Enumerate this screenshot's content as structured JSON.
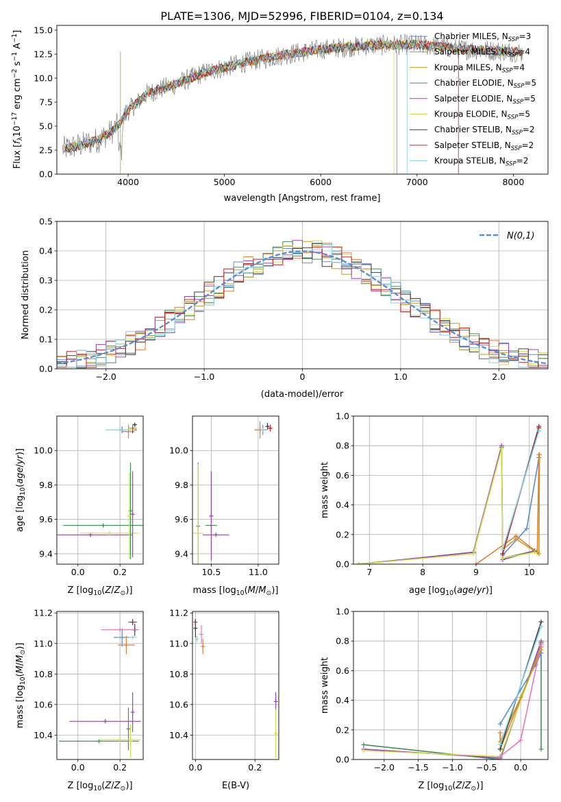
{
  "title": "PLATE=1306, MJD=52996, FIBERID=0104, z=0.134",
  "models": [
    {
      "name": "Chabrier MILES",
      "nssp": "3",
      "color": "#5b8bd8"
    },
    {
      "name": "Salpeter MILES",
      "nssp": "4",
      "color": "#e07b39"
    },
    {
      "name": "Kroupa MILES",
      "nssp": "4",
      "color": "#c59a1a"
    },
    {
      "name": "Chabrier ELODIE",
      "nssp": "5",
      "color": "#3f8f5a"
    },
    {
      "name": "Salpeter ELODIE",
      "nssp": "5",
      "color": "#9a3fb2"
    },
    {
      "name": "Kroupa ELODIE",
      "nssp": "5",
      "color": "#d4dd4a"
    },
    {
      "name": "Chabrier STELIB",
      "nssp": "2",
      "color": "#3d3d3d"
    },
    {
      "name": "Salpeter STELIB",
      "nssp": "2",
      "color": "#c42020"
    },
    {
      "name": "Kroupa STELIB",
      "nssp": "2",
      "color": "#7fd4e4"
    }
  ],
  "chart_data": [
    {
      "id": "spectrum",
      "type": "line",
      "xlabel": "wavelength [Angstrom, rest frame]",
      "ylabel": "Flux [f_λ 10^-17 erg cm^-2 s^-1 A^-1]",
      "xlim": [
        3260,
        8360
      ],
      "ylim": [
        0,
        15.5
      ],
      "xticks": [
        4000,
        5000,
        6000,
        7000,
        8000
      ],
      "yticks": [
        0.0,
        2.5,
        5.0,
        7.5,
        10.0,
        12.5,
        15.0
      ],
      "legend": "top-right",
      "data_color": "#808080",
      "continuum": [
        {
          "x": 3320,
          "y": 2.6
        },
        {
          "x": 3500,
          "y": 3.0
        },
        {
          "x": 3700,
          "y": 3.6
        },
        {
          "x": 3850,
          "y": 4.6
        },
        {
          "x": 3920,
          "y": 5.4
        },
        {
          "x": 4000,
          "y": 6.6
        },
        {
          "x": 4200,
          "y": 8.4
        },
        {
          "x": 4500,
          "y": 9.4
        },
        {
          "x": 4800,
          "y": 10.6
        },
        {
          "x": 5200,
          "y": 11.6
        },
        {
          "x": 5600,
          "y": 12.4
        },
        {
          "x": 6000,
          "y": 13.0
        },
        {
          "x": 6500,
          "y": 13.4
        },
        {
          "x": 7000,
          "y": 13.5
        },
        {
          "x": 7500,
          "y": 13.0
        },
        {
          "x": 8100,
          "y": 12.7
        }
      ]
    },
    {
      "id": "residuals",
      "type": "step",
      "xlabel": "(data-model)/error",
      "ylabel": "Normed distribution",
      "xlim": [
        -2.5,
        2.5
      ],
      "ylim": [
        0,
        0.5
      ],
      "xticks": [
        -2,
        -1,
        0,
        1,
        2
      ],
      "yticks": [
        0.0,
        0.1,
        0.2,
        0.3,
        0.4,
        0.5
      ],
      "grid": true,
      "legend": "top-right",
      "gaussian_label": "N(0,1)",
      "gaussian_color": "#5b8bd8",
      "bin_width": 0.1
    },
    {
      "id": "age-vs-Z",
      "type": "errorbar",
      "xlabel": "Z [log10(Z/Z_sun)]",
      "ylabel": "age [log10(age/yr)]",
      "xlim": [
        -0.1,
        0.31
      ],
      "ylim": [
        9.34,
        10.2
      ],
      "xticks": [
        0.0,
        0.2
      ],
      "yticks": [
        9.4,
        9.6,
        9.8,
        10.0
      ],
      "grid": true,
      "points": [
        {
          "m": 0,
          "x": 0.21,
          "y": 10.12,
          "xe": 0.02,
          "ye": 0.02
        },
        {
          "m": 1,
          "x": 0.24,
          "y": 10.11,
          "xe": 0.03,
          "ye": 0.04
        },
        {
          "m": 2,
          "x": 0.26,
          "y": 10.13,
          "xe": 0.02,
          "ye": 0.02
        },
        {
          "m": 3,
          "x": 0.12,
          "y": 9.565,
          "xe": 0.19,
          "ye": 0.01
        },
        {
          "m": 4,
          "x": 0.06,
          "y": 9.51,
          "xe": 0.2,
          "ye": 0.01
        },
        {
          "m": 5,
          "x": 0.15,
          "y": 9.52,
          "xe": 0.14,
          "ye": 0.01
        },
        {
          "m": 6,
          "x": 0.27,
          "y": 10.15,
          "xe": 0.01,
          "ye": 0.01
        },
        {
          "m": 7,
          "x": 0.26,
          "y": 10.12,
          "xe": 0.02,
          "ye": 0.02
        },
        {
          "m": 8,
          "x": 0.2,
          "y": 10.12,
          "xe": 0.07,
          "ye": 0.01
        },
        {
          "m": 3,
          "x": 0.25,
          "y": 9.65,
          "xe": 0.0,
          "ye": 0.28
        },
        {
          "m": 4,
          "x": 0.26,
          "y": 9.63,
          "xe": 0.0,
          "ye": 0.25
        },
        {
          "m": 5,
          "x": 0.245,
          "y": 9.62,
          "xe": 0.0,
          "ye": 0.25
        }
      ]
    },
    {
      "id": "age-vs-mass",
      "type": "errorbar",
      "xlabel": "mass [log10(M/M_sun)]",
      "ylabel": "",
      "xlim": [
        10.3,
        11.22
      ],
      "ylim": [
        9.34,
        10.2
      ],
      "xticks": [
        10.5,
        11.0
      ],
      "yticks": [
        9.4,
        9.6,
        9.8,
        10.0
      ],
      "grid": true,
      "points": [
        {
          "m": 0,
          "x": 11.05,
          "y": 10.12,
          "xe": 0.04,
          "ye": 0.03
        },
        {
          "m": 1,
          "x": 11.02,
          "y": 10.12,
          "xe": 0.06,
          "ye": 0.05
        },
        {
          "m": 6,
          "x": 11.1,
          "y": 10.14,
          "xe": 0.02,
          "ye": 0.02
        },
        {
          "m": 7,
          "x": 11.13,
          "y": 10.13,
          "xe": 0.02,
          "ye": 0.02
        },
        {
          "m": 8,
          "x": 11.05,
          "y": 10.12,
          "xe": 0.02,
          "ye": 0.01
        },
        {
          "m": 3,
          "x": 10.36,
          "y": 9.56,
          "xe": 0.0,
          "ye": 0.37
        },
        {
          "m": 3,
          "x": 10.5,
          "y": 9.565,
          "xe": 0.06,
          "ye": 0.0
        },
        {
          "m": 4,
          "x": 10.5,
          "y": 9.62,
          "xe": 0.0,
          "ye": 0.26
        },
        {
          "m": 4,
          "x": 10.55,
          "y": 9.51,
          "xe": 0.14,
          "ye": 0.0
        },
        {
          "m": 5,
          "x": 10.36,
          "y": 9.52,
          "xe": 0.06,
          "ye": 0.4
        }
      ]
    },
    {
      "id": "massweight-vs-age",
      "type": "line",
      "xlabel": "age [log10(age/yr)]",
      "ylabel": "mass weight",
      "xlim": [
        6.7,
        10.35
      ],
      "ylim": [
        0,
        1
      ],
      "xticks": [
        7,
        8,
        9,
        10
      ],
      "yticks": [
        0.0,
        0.2,
        0.4,
        0.6,
        0.8,
        1.0
      ],
      "grid": true,
      "series": [
        {
          "m": 0,
          "x": [
            9.5,
            9.95,
            10.18
          ],
          "y": [
            0.06,
            0.24,
            0.72
          ]
        },
        {
          "m": 1,
          "x": [
            9.0,
            9.75,
            10.15,
            10.18
          ],
          "y": [
            0.0,
            0.19,
            0.08,
            0.74
          ]
        },
        {
          "m": 2,
          "x": [
            9.5,
            9.75,
            10.18,
            10.19
          ],
          "y": [
            0.1,
            0.17,
            0.07,
            0.74
          ]
        },
        {
          "m": 3,
          "x": [
            6.8,
            8.95,
            9.48,
            9.5,
            10.1
          ],
          "y": [
            0.0,
            0.08,
            0.79,
            0.04,
            0.09
          ]
        },
        {
          "m": 4,
          "x": [
            6.8,
            8.95,
            9.48,
            9.5,
            10.1
          ],
          "y": [
            0.0,
            0.08,
            0.8,
            0.03,
            0.09
          ]
        },
        {
          "m": 5,
          "x": [
            6.8,
            8.95,
            9.48,
            9.5,
            10.1
          ],
          "y": [
            0.0,
            0.07,
            0.78,
            0.04,
            0.08
          ]
        },
        {
          "m": 6,
          "x": [
            9.5,
            10.18
          ],
          "y": [
            0.07,
            0.93
          ]
        },
        {
          "m": 7,
          "x": [
            9.5,
            10.18
          ],
          "y": [
            0.07,
            0.92
          ]
        },
        {
          "m": 8,
          "x": [
            9.5,
            10.18
          ],
          "y": [
            0.1,
            0.9
          ]
        }
      ]
    },
    {
      "id": "mass-vs-Z",
      "type": "errorbar",
      "xlabel": "Z [log10(Z/Z_sun)]",
      "ylabel": "mass [log10(M/M_sun)]",
      "xlim": [
        -0.1,
        0.31
      ],
      "ylim": [
        10.24,
        11.21
      ],
      "xticks": [
        0.0,
        0.2
      ],
      "yticks": [
        10.4,
        10.6,
        10.8,
        11.0,
        11.2
      ],
      "grid": true,
      "points": [
        {
          "m": 0,
          "x": 0.21,
          "y": 11.04,
          "xe": 0.04,
          "ye": 0.06
        },
        {
          "m": 1,
          "x": 0.23,
          "y": 10.99,
          "xe": 0.04,
          "ye": 0.06
        },
        {
          "m": 6,
          "x": 0.27,
          "y": 11.09,
          "xe": 0.01,
          "ye": 0.04
        },
        {
          "m": 7,
          "x": 0.26,
          "y": 11.14,
          "xe": 0.02,
          "ye": 0.02
        },
        {
          "m": 8,
          "x": 0.26,
          "y": 11.04,
          "xe": 0.02,
          "ye": 0.01
        },
        {
          "m": 9,
          "x": 0.2,
          "y": 11.09,
          "xe": 0.09,
          "ye": 0.0
        },
        {
          "m": 3,
          "x": 0.1,
          "y": 10.36,
          "xe": 0.19,
          "ye": 0.0
        },
        {
          "m": 3,
          "x": 0.24,
          "y": 10.44,
          "xe": 0.0,
          "ye": 0.14
        },
        {
          "m": 4,
          "x": 0.13,
          "y": 10.49,
          "xe": 0.17,
          "ye": 0.0
        },
        {
          "m": 4,
          "x": 0.26,
          "y": 10.55,
          "xe": 0.0,
          "ye": 0.13
        },
        {
          "m": 5,
          "x": 0.2,
          "y": 10.37,
          "xe": 0.1,
          "ye": 0.0
        },
        {
          "m": 5,
          "x": 0.25,
          "y": 10.36,
          "xe": 0.0,
          "ye": 0.11
        }
      ]
    },
    {
      "id": "mass-vs-ebv",
      "type": "errorbar",
      "xlabel": "E(B-V)",
      "ylabel": "",
      "xlim": [
        -0.01,
        0.28
      ],
      "ylim": [
        10.24,
        11.21
      ],
      "xticks": [
        0.0,
        0.2
      ],
      "yticks": [
        10.4,
        10.6,
        10.8,
        11.0,
        11.2
      ],
      "grid": true,
      "points": [
        {
          "m": 6,
          "x": 0.0,
          "y": 11.1,
          "xe": 0.0,
          "ye": 0.06
        },
        {
          "m": 7,
          "x": 0.0,
          "y": 11.14,
          "xe": 0.0,
          "ye": 0.02
        },
        {
          "m": 9,
          "x": 0.02,
          "y": 11.06,
          "xe": 0.0,
          "ye": 0.06
        },
        {
          "m": 1,
          "x": 0.025,
          "y": 10.98,
          "xe": 0.0,
          "ye": 0.05
        },
        {
          "m": 8,
          "x": 0.005,
          "y": 11.03,
          "xe": 0.0,
          "ye": 0.02
        },
        {
          "m": 4,
          "x": 0.27,
          "y": 10.62,
          "xe": 0.0,
          "ye": 0.06
        },
        {
          "m": 5,
          "x": 0.27,
          "y": 10.41,
          "xe": 0.0,
          "ye": 0.16
        }
      ]
    },
    {
      "id": "massweight-vs-Z",
      "type": "line",
      "xlabel": "Z [log10(Z/Z_sun)]",
      "ylabel": "mass weight",
      "xlim": [
        -2.45,
        0.4
      ],
      "ylim": [
        0,
        1
      ],
      "xticks": [
        -2.0,
        -1.5,
        -1.0,
        -0.5,
        0.0
      ],
      "yticks": [
        0.0,
        0.2,
        0.4,
        0.6,
        0.8,
        1.0
      ],
      "grid": true,
      "series": [
        {
          "m": 3,
          "x": [
            -2.3,
            -0.3,
            0.3,
            0.3
          ],
          "y": [
            0.1,
            0.0,
            0.8,
            0.07
          ]
        },
        {
          "m": 4,
          "x": [
            -2.3,
            -0.3,
            0.3
          ],
          "y": [
            0.07,
            0.01,
            0.79
          ]
        },
        {
          "m": 5,
          "x": [
            -2.3,
            -0.3,
            0.3
          ],
          "y": [
            0.06,
            0.02,
            0.77
          ]
        },
        {
          "m": 0,
          "x": [
            -0.3,
            0.22,
            0.3
          ],
          "y": [
            0.24,
            0.64,
            0.72
          ]
        },
        {
          "m": 1,
          "x": [
            -0.3,
            -0.3,
            0.3
          ],
          "y": [
            0.18,
            0.07,
            0.76
          ]
        },
        {
          "m": 2,
          "x": [
            -0.3,
            0.0,
            0.3
          ],
          "y": [
            0.12,
            0.42,
            0.74
          ]
        },
        {
          "m": 6,
          "x": [
            -0.3,
            0.3
          ],
          "y": [
            0.07,
            0.93
          ]
        },
        {
          "m": 8,
          "x": [
            -0.3,
            0.3
          ],
          "y": [
            0.1,
            0.9
          ]
        },
        {
          "m": 9,
          "x": [
            -0.3,
            0.0,
            0.3
          ],
          "y": [
            0.02,
            0.13,
            0.78
          ]
        }
      ]
    }
  ]
}
